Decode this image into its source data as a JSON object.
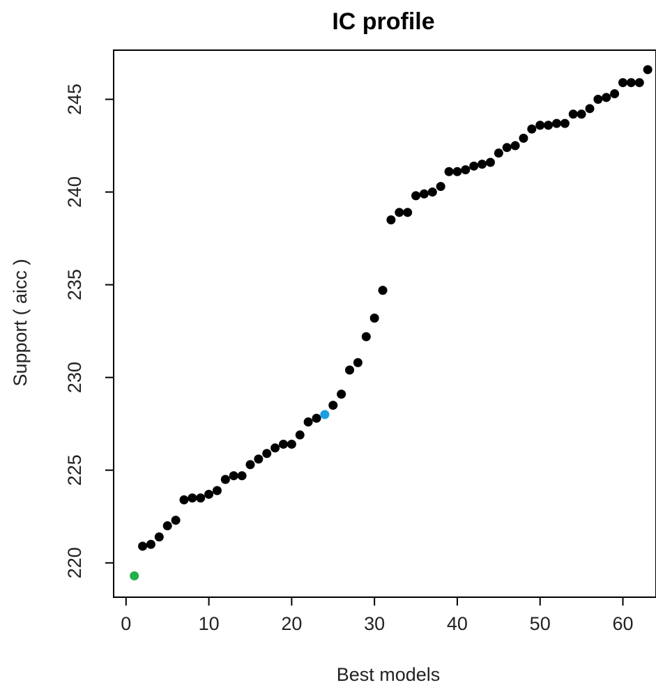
{
  "chart_data": {
    "type": "scatter",
    "title": "IC profile",
    "xlabel": "Best models",
    "ylabel": "Support ( aicc )",
    "xlim": [
      -1.5,
      64
    ],
    "ylim": [
      218.15,
      247.65
    ],
    "xticks": [
      0,
      10,
      20,
      30,
      40,
      50,
      60
    ],
    "yticks": [
      220,
      225,
      230,
      235,
      240,
      245
    ],
    "grid": false,
    "legend": "none",
    "colors": {
      "default": "#000000",
      "first": "#22b04b",
      "highlight": "#1a9fe0"
    },
    "highlight_points": [
      {
        "x": 1,
        "color": "first"
      },
      {
        "x": 24,
        "color": "highlight"
      }
    ],
    "series": [
      {
        "x": [
          1,
          2,
          3,
          4,
          5,
          6,
          7,
          8,
          9,
          10,
          11,
          12,
          13,
          14,
          15,
          16,
          17,
          18,
          19,
          20,
          21,
          22,
          23,
          24,
          25,
          26,
          27,
          28,
          29,
          30,
          31,
          32,
          33,
          34,
          35,
          36,
          37,
          38,
          39,
          40,
          41,
          42,
          43,
          44,
          45,
          46,
          47,
          48,
          49,
          50,
          51,
          52,
          53,
          54,
          55,
          56,
          57,
          58,
          59,
          60,
          61,
          62,
          63
        ],
        "y": [
          219.3,
          220.9,
          221.0,
          221.4,
          222.0,
          222.3,
          223.4,
          223.5,
          223.5,
          223.7,
          223.9,
          224.5,
          224.7,
          224.7,
          225.3,
          225.6,
          225.9,
          226.2,
          226.4,
          226.4,
          226.9,
          227.6,
          227.8,
          228.0,
          228.5,
          229.1,
          230.4,
          230.8,
          232.2,
          233.2,
          234.7,
          238.5,
          238.9,
          238.9,
          239.8,
          239.9,
          240.0,
          240.3,
          241.1,
          241.1,
          241.2,
          241.4,
          241.5,
          241.6,
          242.1,
          242.4,
          242.5,
          242.9,
          243.4,
          243.6,
          243.6,
          243.7,
          243.7,
          244.2,
          244.2,
          244.5,
          245.0,
          245.1,
          245.3,
          245.9,
          245.9,
          245.9,
          246.6
        ]
      }
    ]
  }
}
